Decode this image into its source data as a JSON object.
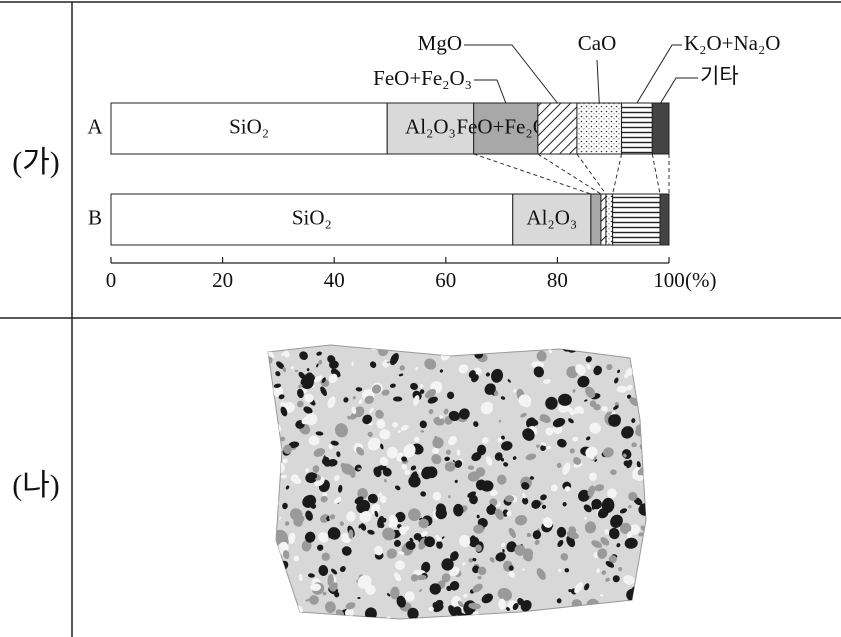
{
  "labels": {
    "row1": "(가)",
    "row2": "(나)"
  },
  "chart_data": {
    "type": "bar",
    "orientation": "horizontal",
    "stacked": true,
    "categories": [
      "A",
      "B"
    ],
    "series": [
      {
        "name": "SiO₂",
        "color": "#ffffff",
        "values": [
          49.5,
          72
        ]
      },
      {
        "name": "Al₂O₃",
        "color": "#d9d9d9",
        "values": [
          15.5,
          14
        ]
      },
      {
        "name": "FeO+Fe₂O₃",
        "color": "#a8a8a8",
        "values": [
          11.5,
          1.8
        ]
      },
      {
        "name": "MgO",
        "color": "#ffffff",
        "pattern": "diagonal",
        "values": [
          7,
          0.9
        ]
      },
      {
        "name": "CaO",
        "color": "#ffffff",
        "pattern": "dots",
        "values": [
          8,
          1.2
        ]
      },
      {
        "name": "K₂O+Na₂O",
        "color": "#ffffff",
        "pattern": "horizontal",
        "values": [
          5.5,
          8.5
        ]
      },
      {
        "name": "기타",
        "color": "#444444",
        "values": [
          3,
          1.6
        ]
      }
    ],
    "xlim": [
      0,
      100
    ],
    "xticks": [
      0,
      20,
      40,
      60,
      80,
      100
    ],
    "xlabel": "(%)"
  }
}
